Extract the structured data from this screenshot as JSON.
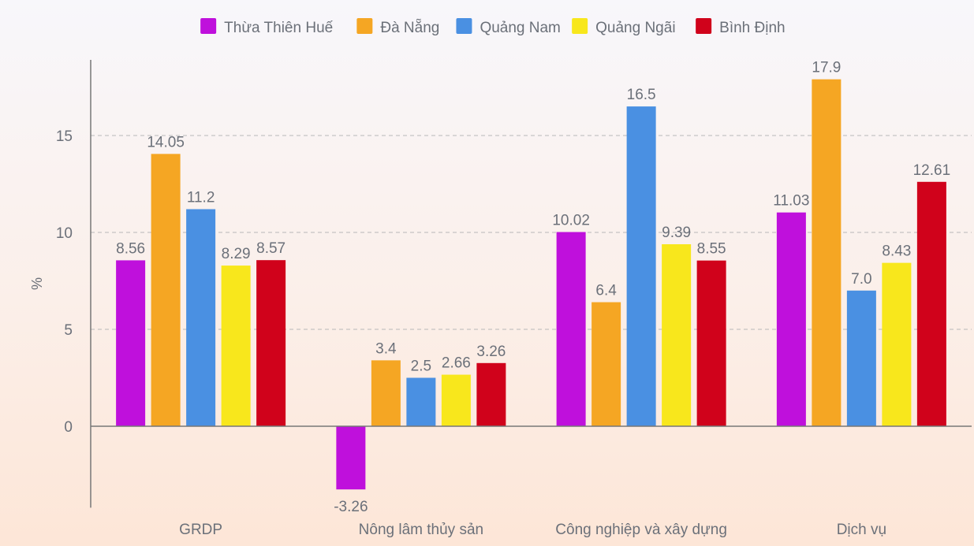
{
  "chart_data": {
    "type": "bar",
    "title": "",
    "xlabel": "",
    "ylabel": "%",
    "ylim": [
      -4.2,
      18.9
    ],
    "yticks": [
      0,
      5,
      10,
      15
    ],
    "grid": true,
    "legend_position": "top",
    "categories": [
      "GRDP",
      "Nông lâm thủy sản",
      "Công nghiệp và xây dựng",
      "Dịch vụ"
    ],
    "series": [
      {
        "name": "Thừa Thiên Huế",
        "color": "#bf10dc",
        "values": [
          8.56,
          -3.26,
          10.02,
          11.03
        ],
        "labels": [
          "8.56",
          "-3.26",
          "10.02",
          "11.03"
        ]
      },
      {
        "name": "Đà Nẵng",
        "color": "#f5a623",
        "values": [
          14.05,
          3.4,
          6.4,
          17.9
        ],
        "labels": [
          "14.05",
          "3.4",
          "6.4",
          "17.9"
        ]
      },
      {
        "name": "Quảng Nam",
        "color": "#4a90e2",
        "values": [
          11.2,
          2.5,
          16.5,
          7.0
        ],
        "labels": [
          "11.2",
          "2.5",
          "16.5",
          "7.0"
        ]
      },
      {
        "name": "Quảng Ngãi",
        "color": "#f8e71c",
        "values": [
          8.29,
          2.66,
          9.39,
          8.43
        ],
        "labels": [
          "8.29",
          "2.66",
          "9.39",
          "8.43"
        ]
      },
      {
        "name": "Bình Định",
        "color": "#d0021b",
        "values": [
          8.57,
          3.26,
          8.55,
          12.61
        ],
        "labels": [
          "8.57",
          "3.26",
          "8.55",
          "12.61"
        ]
      }
    ]
  }
}
